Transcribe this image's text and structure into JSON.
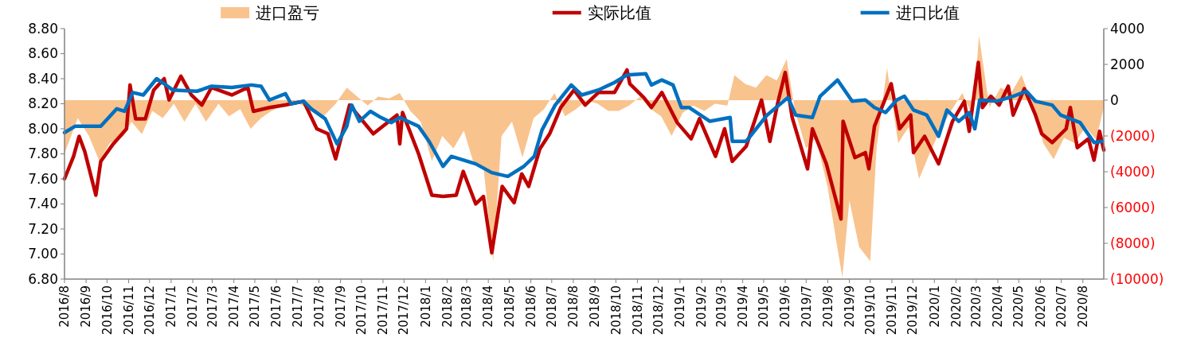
{
  "chart_data": {
    "type": "line",
    "legend": "top",
    "xlim": [
      "2016-08-01",
      "2020-08-31"
    ],
    "xticks": [
      {
        "value": "2016-08-01",
        "label": "2016/8"
      },
      {
        "value": "2016-09-01",
        "label": "2016/9"
      },
      {
        "value": "2016-10-01",
        "label": "2016/10"
      },
      {
        "value": "2016-11-01",
        "label": "2016/11"
      },
      {
        "value": "2016-12-01",
        "label": "2016/12"
      },
      {
        "value": "2017-01-01",
        "label": "2017/1"
      },
      {
        "value": "2017-02-01",
        "label": "2017/2"
      },
      {
        "value": "2017-03-01",
        "label": "2017/3"
      },
      {
        "value": "2017-04-01",
        "label": "2017/4"
      },
      {
        "value": "2017-05-01",
        "label": "2017/5"
      },
      {
        "value": "2017-06-01",
        "label": "2017/6"
      },
      {
        "value": "2017-07-01",
        "label": "2017/7"
      },
      {
        "value": "2017-08-01",
        "label": "2017/8"
      },
      {
        "value": "2017-09-01",
        "label": "2017/9"
      },
      {
        "value": "2017-10-01",
        "label": "2017/10"
      },
      {
        "value": "2017-11-01",
        "label": "2017/11"
      },
      {
        "value": "2017-12-01",
        "label": "2017/12"
      },
      {
        "value": "2018-01-01",
        "label": "2018/1"
      },
      {
        "value": "2018-02-01",
        "label": "2018/2"
      },
      {
        "value": "2018-03-01",
        "label": "2018/3"
      },
      {
        "value": "2018-04-01",
        "label": "2018/4"
      },
      {
        "value": "2018-05-01",
        "label": "2018/5"
      },
      {
        "value": "2018-06-01",
        "label": "2018/6"
      },
      {
        "value": "2018-07-01",
        "label": "2018/7"
      },
      {
        "value": "2018-08-01",
        "label": "2018/8"
      },
      {
        "value": "2018-09-01",
        "label": "2018/9"
      },
      {
        "value": "2018-10-01",
        "label": "2018/10"
      },
      {
        "value": "2018-11-01",
        "label": "2018/11"
      },
      {
        "value": "2018-12-01",
        "label": "2018/12"
      },
      {
        "value": "2019-01-01",
        "label": "2019/1"
      },
      {
        "value": "2019-02-01",
        "label": "2019/2"
      },
      {
        "value": "2019-03-01",
        "label": "2019/3"
      },
      {
        "value": "2019-04-01",
        "label": "2019/4"
      },
      {
        "value": "2019-05-01",
        "label": "2019/5"
      },
      {
        "value": "2019-06-01",
        "label": "2019/6"
      },
      {
        "value": "2019-07-01",
        "label": "2019/7"
      },
      {
        "value": "2019-08-01",
        "label": "2019/8"
      },
      {
        "value": "2019-09-01",
        "label": "2019/9"
      },
      {
        "value": "2019-10-01",
        "label": "2019/10"
      },
      {
        "value": "2019-11-01",
        "label": "2019/11"
      },
      {
        "value": "2019-12-01",
        "label": "2019/12"
      },
      {
        "value": "2020-01-01",
        "label": "2020/1"
      },
      {
        "value": "2020-02-01",
        "label": "2020/2"
      },
      {
        "value": "2020-03-01",
        "label": "2020/3"
      },
      {
        "value": "2020-04-01",
        "label": "2020/4"
      },
      {
        "value": "2020-05-01",
        "label": "2020/5"
      },
      {
        "value": "2020-06-01",
        "label": "2020/6"
      },
      {
        "value": "2020-07-01",
        "label": "2020/7"
      },
      {
        "value": "2020-08-01",
        "label": "2020/8"
      }
    ],
    "ylim": [
      6.8,
      8.8
    ],
    "yticks": [
      {
        "value": 6.8,
        "label": "6.80"
      },
      {
        "value": 7.0,
        "label": "7.00"
      },
      {
        "value": 7.2,
        "label": "7.20"
      },
      {
        "value": 7.4,
        "label": "7.40"
      },
      {
        "value": 7.6,
        "label": "7.60"
      },
      {
        "value": 7.8,
        "label": "7.80"
      },
      {
        "value": 8.0,
        "label": "8.00"
      },
      {
        "value": 8.2,
        "label": "8.20"
      },
      {
        "value": 8.4,
        "label": "8.40"
      },
      {
        "value": 8.6,
        "label": "8.60"
      },
      {
        "value": 8.8,
        "label": "8.80"
      }
    ],
    "y2lim": [
      -10000,
      4000
    ],
    "y2ticks": [
      {
        "value": -10000,
        "label": "(10000)"
      },
      {
        "value": -8000,
        "label": "(8000)"
      },
      {
        "value": -6000,
        "label": "(6000)"
      },
      {
        "value": -4000,
        "label": "(4000)"
      },
      {
        "value": -2000,
        "label": "(2000)"
      },
      0,
      2000,
      4000
    ],
    "series": [
      {
        "name": "进口盈亏",
        "type": "area",
        "axis": "y2",
        "color": "#f9c38e",
        "x": [
          "2016-08-01",
          "2016-08-20",
          "2016-09-05",
          "2016-09-20",
          "2016-10-05",
          "2016-10-25",
          "2016-11-05",
          "2016-11-20",
          "2016-12-05",
          "2016-12-20",
          "2017-01-05",
          "2017-01-20",
          "2017-02-05",
          "2017-02-20",
          "2017-03-10",
          "2017-03-25",
          "2017-04-10",
          "2017-04-25",
          "2017-05-10",
          "2017-05-25",
          "2017-06-10",
          "2017-07-01",
          "2017-07-20",
          "2017-08-05",
          "2017-08-25",
          "2017-09-10",
          "2017-09-25",
          "2017-10-10",
          "2017-10-25",
          "2017-11-10",
          "2017-11-25",
          "2017-12-10",
          "2017-12-25",
          "2018-01-10",
          "2018-01-25",
          "2018-02-10",
          "2018-02-25",
          "2018-03-10",
          "2018-03-25",
          "2018-04-08",
          "2018-04-20",
          "2018-05-05",
          "2018-05-20",
          "2018-06-05",
          "2018-06-20",
          "2018-07-05",
          "2018-07-20",
          "2018-08-05",
          "2018-08-20",
          "2018-09-05",
          "2018-09-20",
          "2018-10-05",
          "2018-10-20",
          "2018-11-05",
          "2018-11-20",
          "2018-12-05",
          "2018-12-20",
          "2019-01-05",
          "2019-01-20",
          "2019-02-05",
          "2019-02-20",
          "2019-03-10",
          "2019-03-20",
          "2019-04-05",
          "2019-04-20",
          "2019-05-05",
          "2019-05-20",
          "2019-06-03",
          "2019-06-15",
          "2019-07-01",
          "2019-07-15",
          "2019-08-01",
          "2019-08-15",
          "2019-08-22",
          "2019-09-01",
          "2019-09-15",
          "2019-10-01",
          "2019-10-10",
          "2019-10-25",
          "2019-11-10",
          "2019-11-25",
          "2019-12-10",
          "2019-12-25",
          "2020-01-10",
          "2020-01-25",
          "2020-02-10",
          "2020-02-25",
          "2020-03-05",
          "2020-03-20",
          "2020-04-05",
          "2020-04-20",
          "2020-05-05",
          "2020-05-20",
          "2020-06-05",
          "2020-06-20",
          "2020-07-05",
          "2020-07-20",
          "2020-08-05",
          "2020-08-20",
          "2020-08-31"
        ],
        "values": [
          -3000,
          -1000,
          -2000,
          -3400,
          -2400,
          -2000,
          -1200,
          -1900,
          -600,
          -1000,
          -200,
          -1200,
          -200,
          -1200,
          -200,
          -900,
          -500,
          -1600,
          -1000,
          -600,
          -300,
          -100,
          -600,
          -1000,
          -200,
          700,
          200,
          -300,
          200,
          100,
          400,
          -600,
          -1200,
          -3400,
          -2000,
          -2700,
          -1700,
          -3400,
          -3700,
          -9000,
          -2000,
          -1200,
          -3200,
          -1000,
          -500,
          400,
          -900,
          -500,
          0,
          -200,
          -600,
          -600,
          -300,
          200,
          -500,
          -900,
          -2000,
          -700,
          -300,
          -600,
          -200,
          -300,
          1400,
          900,
          700,
          1400,
          1100,
          2300,
          -600,
          -2700,
          -2100,
          -4900,
          -8300,
          -9900,
          -5600,
          -8200,
          -9000,
          -2700,
          1800,
          -2400,
          -1500,
          -4400,
          -3000,
          -1600,
          -600,
          400,
          -900,
          3600,
          -400,
          700,
          400,
          1400,
          -100,
          -2400,
          -3300,
          -2100,
          -2400,
          -1500,
          -2200,
          -400
        ]
      },
      {
        "name": "实际比值",
        "color": "#c00000",
        "x": [
          "2016-08-01",
          "2016-08-14",
          "2016-08-22",
          "2016-08-30",
          "2016-09-15",
          "2016-09-22",
          "2016-10-10",
          "2016-10-29",
          "2016-11-03",
          "2016-11-11",
          "2016-11-25",
          "2016-12-07",
          "2016-12-22",
          "2016-12-29",
          "2017-01-15",
          "2017-01-30",
          "2017-02-14",
          "2017-02-28",
          "2017-03-29",
          "2017-04-21",
          "2017-04-29",
          "2017-05-22",
          "2017-06-14",
          "2017-07-10",
          "2017-07-29",
          "2017-08-14",
          "2017-08-25",
          "2017-09-14",
          "2017-10-18",
          "2017-11-21",
          "2017-11-25",
          "2017-11-29",
          "2017-12-22",
          "2018-01-10",
          "2018-01-26",
          "2018-02-14",
          "2018-02-24",
          "2018-03-14",
          "2018-03-25",
          "2018-04-06",
          "2018-04-21",
          "2018-05-08",
          "2018-05-19",
          "2018-05-29",
          "2018-06-14",
          "2018-06-28",
          "2018-07-14",
          "2018-08-02",
          "2018-08-18",
          "2018-09-06",
          "2018-09-29",
          "2018-10-17",
          "2018-10-21",
          "2018-11-10",
          "2018-11-21",
          "2018-12-06",
          "2018-12-28",
          "2019-01-17",
          "2019-01-29",
          "2019-02-21",
          "2019-03-06",
          "2019-03-17",
          "2019-04-06",
          "2019-04-28",
          "2019-05-10",
          "2019-05-21",
          "2019-06-01",
          "2019-06-11",
          "2019-07-03",
          "2019-07-10",
          "2019-07-30",
          "2019-08-20",
          "2019-08-23",
          "2019-09-09",
          "2019-09-24",
          "2019-09-29",
          "2019-10-07",
          "2019-10-31",
          "2019-11-12",
          "2019-11-28",
          "2019-12-02",
          "2019-12-18",
          "2020-01-07",
          "2020-01-27",
          "2020-02-13",
          "2020-02-20",
          "2020-03-04",
          "2020-03-10",
          "2020-03-22",
          "2020-04-03",
          "2020-04-16",
          "2020-04-23",
          "2020-05-09",
          "2020-05-25",
          "2020-06-03",
          "2020-06-18",
          "2020-07-08",
          "2020-07-14",
          "2020-07-24",
          "2020-08-09",
          "2020-08-17",
          "2020-08-25",
          "2020-08-31"
        ],
        "values": [
          7.6,
          7.78,
          7.94,
          7.82,
          7.47,
          7.74,
          7.88,
          8.0,
          8.35,
          8.08,
          8.08,
          8.31,
          8.4,
          8.23,
          8.42,
          8.27,
          8.19,
          8.33,
          8.27,
          8.33,
          8.14,
          8.17,
          8.19,
          8.22,
          8.0,
          7.96,
          7.76,
          8.19,
          7.96,
          8.11,
          7.88,
          8.13,
          7.8,
          7.47,
          7.46,
          7.47,
          7.66,
          7.4,
          7.46,
          7.01,
          7.54,
          7.41,
          7.64,
          7.54,
          7.84,
          7.96,
          8.17,
          8.31,
          8.19,
          8.29,
          8.29,
          8.47,
          8.36,
          8.25,
          8.17,
          8.29,
          8.05,
          7.92,
          8.08,
          7.78,
          8.0,
          7.74,
          7.86,
          8.23,
          7.9,
          8.2,
          8.45,
          8.09,
          7.68,
          8.0,
          7.72,
          7.28,
          8.06,
          7.77,
          7.81,
          7.68,
          8.02,
          8.36,
          8.0,
          8.11,
          7.81,
          7.94,
          7.72,
          8.06,
          8.22,
          7.98,
          8.53,
          8.17,
          8.26,
          8.19,
          8.34,
          8.11,
          8.32,
          8.11,
          7.96,
          7.89,
          8.0,
          8.17,
          7.85,
          7.92,
          7.75,
          7.98,
          7.83
        ]
      },
      {
        "name": "进口比值",
        "color": "#0070c0",
        "x": [
          "2016-08-01",
          "2016-08-16",
          "2016-09-22",
          "2016-10-15",
          "2016-10-26",
          "2016-11-07",
          "2016-11-22",
          "2016-12-11",
          "2016-12-22",
          "2017-01-03",
          "2017-02-07",
          "2017-02-28",
          "2017-03-29",
          "2017-04-26",
          "2017-05-10",
          "2017-05-22",
          "2017-06-14",
          "2017-06-22",
          "2017-07-10",
          "2017-07-21",
          "2017-08-10",
          "2017-08-27",
          "2017-09-10",
          "2017-09-17",
          "2017-09-28",
          "2017-10-14",
          "2017-10-29",
          "2017-11-13",
          "2017-11-25",
          "2017-12-22",
          "2018-01-06",
          "2018-01-26",
          "2018-02-07",
          "2018-03-14",
          "2018-04-06",
          "2018-04-29",
          "2018-05-22",
          "2018-06-06",
          "2018-06-17",
          "2018-07-06",
          "2018-07-29",
          "2018-08-13",
          "2018-09-06",
          "2018-09-29",
          "2018-10-17",
          "2018-11-13",
          "2018-11-21",
          "2018-12-06",
          "2018-12-22",
          "2019-01-03",
          "2019-01-14",
          "2019-02-13",
          "2019-03-14",
          "2019-03-17",
          "2019-04-06",
          "2019-05-06",
          "2019-06-05",
          "2019-06-16",
          "2019-07-10",
          "2019-07-21",
          "2019-08-15",
          "2019-09-05",
          "2019-09-24",
          "2019-10-07",
          "2019-10-23",
          "2019-11-08",
          "2019-11-19",
          "2019-12-02",
          "2019-12-21",
          "2020-01-07",
          "2020-01-19",
          "2020-02-05",
          "2020-02-20",
          "2020-02-28",
          "2020-03-06",
          "2020-03-30",
          "2020-04-23",
          "2020-05-12",
          "2020-05-25",
          "2020-06-18",
          "2020-06-30",
          "2020-07-28",
          "2020-08-17",
          "2020-08-29"
        ],
        "values": [
          7.97,
          8.02,
          8.02,
          8.16,
          8.14,
          8.29,
          8.27,
          8.4,
          8.36,
          8.31,
          8.3,
          8.34,
          8.33,
          8.35,
          8.34,
          8.23,
          8.28,
          8.2,
          8.22,
          8.16,
          8.08,
          7.88,
          8.02,
          8.19,
          8.06,
          8.14,
          8.09,
          8.05,
          8.09,
          8.02,
          7.9,
          7.7,
          7.78,
          7.72,
          7.65,
          7.62,
          7.7,
          7.78,
          7.99,
          8.19,
          8.35,
          8.27,
          8.31,
          8.37,
          8.43,
          8.44,
          8.35,
          8.39,
          8.35,
          8.17,
          8.17,
          8.06,
          8.09,
          7.9,
          7.9,
          8.11,
          8.25,
          8.11,
          8.09,
          8.26,
          8.39,
          8.22,
          8.23,
          8.17,
          8.13,
          8.23,
          8.26,
          8.15,
          8.11,
          7.94,
          8.15,
          8.06,
          8.13,
          8.0,
          8.23,
          8.22,
          8.26,
          8.3,
          8.22,
          8.19,
          8.11,
          8.05,
          7.89,
          7.9
        ]
      }
    ]
  }
}
